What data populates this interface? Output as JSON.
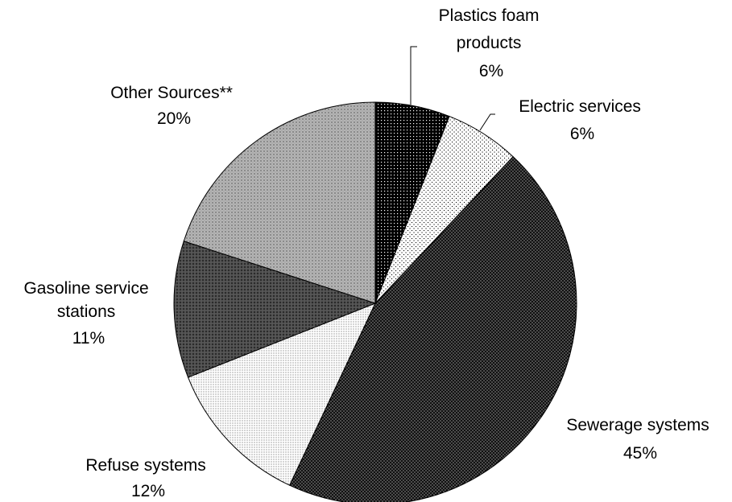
{
  "chart_data": {
    "type": "pie",
    "title": "",
    "slices": [
      {
        "name": "Plastics foam products",
        "label_lines": [
          "Plastics foam",
          "products",
          "6%"
        ],
        "value": 6,
        "pattern": "p-plastics"
      },
      {
        "name": "Electric services",
        "label_lines": [
          "Electric services",
          "6%"
        ],
        "value": 6,
        "pattern": "p-electric"
      },
      {
        "name": "Sewerage systems",
        "label_lines": [
          "Sewerage systems",
          "45%"
        ],
        "value": 45,
        "pattern": "p-sewerage"
      },
      {
        "name": "Refuse systems",
        "label_lines": [
          "Refuse systems",
          "12%"
        ],
        "value": 12,
        "pattern": "p-refuse"
      },
      {
        "name": "Gasoline service stations",
        "label_lines": [
          "Gasoline service",
          "stations",
          "11%"
        ],
        "value": 11,
        "pattern": "p-gasoline"
      },
      {
        "name": "Other Sources**",
        "label_lines": [
          "Other Sources**",
          "20%"
        ],
        "value": 20,
        "pattern": "p-other"
      }
    ],
    "legend": "none",
    "direction": "clockwise from top"
  }
}
